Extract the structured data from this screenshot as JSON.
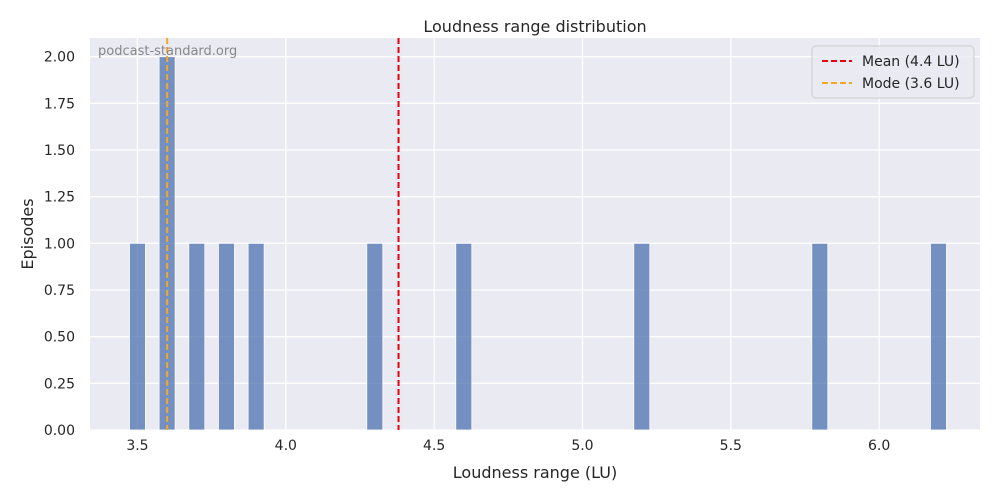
{
  "chart_data": {
    "type": "bar",
    "title": "Loudness range distribution",
    "xlabel": "Loudness range (LU)",
    "ylabel": "Episodes",
    "watermark": "podcast-standard.org",
    "xlim": [
      3.34,
      6.34
    ],
    "ylim": [
      0,
      2.1
    ],
    "xticks": [
      3.5,
      4.0,
      4.5,
      5.0,
      5.5,
      6.0
    ],
    "xtick_labels": [
      "3.5",
      "4.0",
      "4.5",
      "5.0",
      "5.5",
      "6.0"
    ],
    "yticks": [
      0,
      0.25,
      0.5,
      0.75,
      1.0,
      1.25,
      1.5,
      1.75,
      2.0
    ],
    "ytick_labels": [
      "0.00",
      "0.25",
      "0.50",
      "0.75",
      "1.00",
      "1.25",
      "1.50",
      "1.75",
      "2.00"
    ],
    "bin_width": 0.054,
    "bars": [
      {
        "x": 3.5,
        "count": 1
      },
      {
        "x": 3.6,
        "count": 2
      },
      {
        "x": 3.7,
        "count": 1
      },
      {
        "x": 3.8,
        "count": 1
      },
      {
        "x": 3.9,
        "count": 1
      },
      {
        "x": 4.3,
        "count": 1
      },
      {
        "x": 4.6,
        "count": 1
      },
      {
        "x": 5.2,
        "count": 1
      },
      {
        "x": 5.8,
        "count": 1
      },
      {
        "x": 6.2,
        "count": 1
      }
    ],
    "reference_lines": [
      {
        "label": "Mean (4.4 LU)",
        "x": 4.38,
        "color": "#e8000b"
      },
      {
        "label": "Mode (3.6 LU)",
        "x": 3.6,
        "color": "#f5a623"
      }
    ],
    "bar_color": "#4c72b0",
    "background_color": "#eaeaf2",
    "grid": true,
    "legend_position": "top-right"
  }
}
